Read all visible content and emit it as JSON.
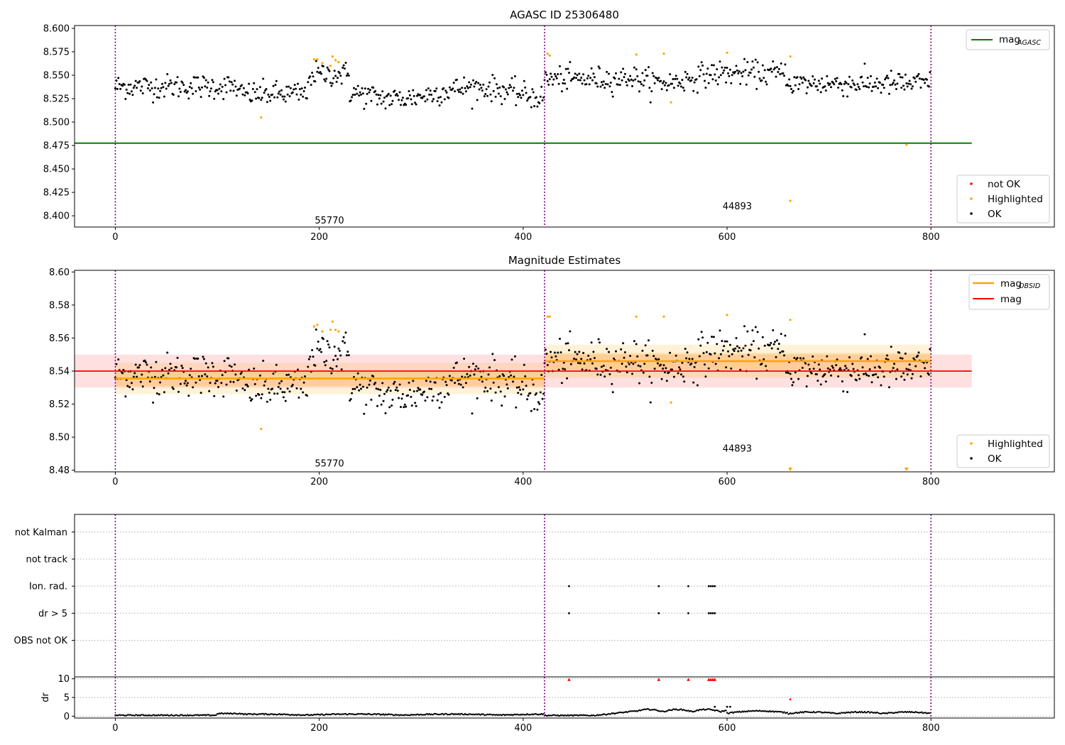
{
  "colors": {
    "ok": "#000000",
    "highlighted": "#ffa500",
    "not_ok": "#ff0000",
    "agasc": "#008000",
    "obsid": "#ffa500",
    "mag": "#ff0000",
    "divider": "#800080",
    "grid": "#b0b0b0"
  },
  "chart_data": [
    {
      "id": "top",
      "type": "scatter",
      "title": "AGASC ID 25306480",
      "xlim": [
        -40,
        921
      ],
      "ylim": [
        8.388,
        8.603
      ],
      "x_ticks": [
        0,
        200,
        400,
        600,
        800
      ],
      "x_tick_labels": [
        "0",
        "200",
        "400",
        "600",
        "800"
      ],
      "y_ticks": [
        8.4,
        8.425,
        8.45,
        8.475,
        8.5,
        8.525,
        8.55,
        8.575,
        8.6
      ],
      "y_tick_labels": [
        "8.400",
        "8.425",
        "8.450",
        "8.475",
        "8.500",
        "8.525",
        "8.550",
        "8.575",
        "8.600"
      ],
      "dividers": [
        0,
        421,
        800
      ],
      "obsid_labels": [
        {
          "text": "55770",
          "x": 210,
          "y": 8.395
        },
        {
          "text": "44893",
          "x": 610,
          "y": 8.41
        }
      ],
      "agasc_mag": 8.4775,
      "agasc_xrange": [
        -40,
        840
      ],
      "highlighted": [
        [
          195,
          8.567
        ],
        [
          198,
          8.567
        ],
        [
          203,
          8.563
        ],
        [
          211,
          8.56
        ],
        [
          213,
          8.57
        ],
        [
          216,
          8.566
        ],
        [
          219,
          8.564
        ],
        [
          143,
          8.505
        ],
        [
          424,
          8.573
        ],
        [
          426,
          8.571
        ],
        [
          511,
          8.572
        ],
        [
          538,
          8.573
        ],
        [
          545,
          8.521
        ],
        [
          600,
          8.574
        ],
        [
          662,
          8.57
        ],
        [
          662,
          8.416
        ],
        [
          776,
          8.476
        ]
      ],
      "legends": [
        {
          "position": "upper right",
          "entries": [
            {
              "label": "mag",
              "subscript": "AGASC",
              "kind": "line",
              "color": "#008000"
            }
          ]
        },
        {
          "position": "lower right",
          "entries": [
            {
              "label": "not OK",
              "kind": "dot",
              "color": "#ff0000"
            },
            {
              "label": "Highlighted",
              "kind": "dot",
              "color": "#ffa500"
            },
            {
              "label": "OK",
              "kind": "dot",
              "color": "#000000"
            }
          ]
        }
      ]
    },
    {
      "id": "mid",
      "type": "scatter",
      "title": "Magnitude Estimates",
      "xlim": [
        -40,
        921
      ],
      "ylim": [
        8.479,
        8.601
      ],
      "x_ticks": [
        0,
        200,
        400,
        600,
        800
      ],
      "x_tick_labels": [
        "0",
        "200",
        "400",
        "600",
        "800"
      ],
      "y_ticks": [
        8.48,
        8.5,
        8.52,
        8.54,
        8.56,
        8.58,
        8.6
      ],
      "y_tick_labels": [
        "8.48",
        "8.50",
        "8.52",
        "8.54",
        "8.56",
        "8.58",
        "8.60"
      ],
      "dividers": [
        0,
        421,
        800
      ],
      "obsid_labels": [
        {
          "text": "55770",
          "x": 210,
          "y": 8.484
        },
        {
          "text": "44893",
          "x": 610,
          "y": 8.493
        }
      ],
      "mag": 8.54,
      "mag_band": [
        8.53,
        8.55
      ],
      "mag_xrange": [
        -40,
        840
      ],
      "obsid_segments": [
        {
          "x": [
            0,
            421
          ],
          "mean": 8.5355,
          "band1": [
            8.531,
            8.54
          ],
          "band2": [
            8.526,
            8.545
          ]
        },
        {
          "x": [
            421,
            800
          ],
          "mean": 8.546,
          "band1": [
            8.541,
            8.551
          ],
          "band2": [
            8.536,
            8.556
          ]
        }
      ],
      "highlighted": [
        [
          195,
          8.567
        ],
        [
          198,
          8.568
        ],
        [
          203,
          8.564
        ],
        [
          211,
          8.565
        ],
        [
          213,
          8.57
        ],
        [
          216,
          8.565
        ],
        [
          219,
          8.564
        ],
        [
          143,
          8.505
        ],
        [
          424,
          8.573
        ],
        [
          426,
          8.573
        ],
        [
          511,
          8.573
        ],
        [
          538,
          8.573
        ],
        [
          545,
          8.521
        ],
        [
          600,
          8.574
        ],
        [
          662,
          8.571
        ]
      ],
      "below_range_markers": [
        662,
        776
      ],
      "legends": [
        {
          "position": "upper right",
          "entries": [
            {
              "label": "mag",
              "subscript": "OBSID",
              "kind": "line",
              "color": "#ffa500"
            },
            {
              "label": "mag",
              "kind": "line",
              "color": "#ff0000"
            }
          ]
        },
        {
          "position": "lower right",
          "entries": [
            {
              "label": "Highlighted",
              "kind": "dot",
              "color": "#ffa500"
            },
            {
              "label": "OK",
              "kind": "dot",
              "color": "#000000"
            }
          ]
        }
      ]
    },
    {
      "id": "flags",
      "type": "scatter",
      "xlim": [
        -40,
        921
      ],
      "categories": [
        "not Kalman",
        "not track",
        "Ion. rad.",
        "dr > 5",
        "OBS not OK"
      ],
      "dividers": [
        0,
        421,
        800
      ],
      "flag_points": {
        "Ion. rad.": [
          445,
          533,
          562,
          582,
          584,
          586,
          588
        ],
        "dr > 5": [
          445,
          533,
          562,
          582,
          584,
          586,
          588
        ]
      }
    },
    {
      "id": "dr",
      "type": "scatter",
      "ylabel": "dr",
      "xlim": [
        -40,
        921
      ],
      "ylim": [
        -0.5,
        10.5
      ],
      "x_ticks": [
        0,
        200,
        400,
        600,
        800
      ],
      "x_tick_labels": [
        "0",
        "200",
        "400",
        "600",
        "800"
      ],
      "y_ticks": [
        0,
        5,
        10
      ],
      "y_tick_labels": [
        "0",
        "5",
        "10"
      ],
      "dividers": [
        0,
        421,
        800
      ],
      "clipped_markers": [
        445,
        533,
        562,
        582,
        584,
        586,
        588
      ],
      "outliers": [
        [
          662,
          4.5
        ],
        [
          588,
          2.5
        ],
        [
          600,
          2.5
        ],
        [
          603,
          2.5
        ]
      ]
    }
  ]
}
